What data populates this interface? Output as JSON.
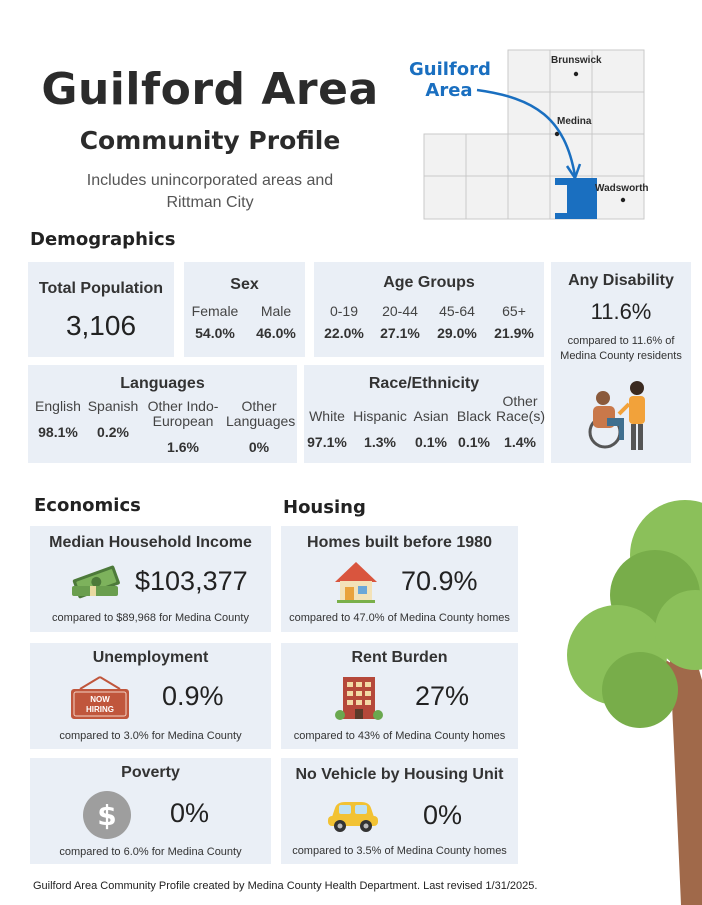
{
  "header": {
    "title": "Guilford Area",
    "subtitle": "Community Profile",
    "note_line1": "Includes unincorporated areas and",
    "note_line2": "Rittman City"
  },
  "map": {
    "callout_line1": "Guilford",
    "callout_line2": "Area",
    "labels": [
      "Brunswick",
      "Medina",
      "Wadsworth"
    ],
    "highlight_color": "#1a6fc0"
  },
  "sections": {
    "demographics": "Demographics",
    "economics": "Economics",
    "housing": "Housing"
  },
  "demographics": {
    "total_population": {
      "label": "Total Population",
      "value": "3,106"
    },
    "sex": {
      "label": "Sex",
      "items": [
        {
          "label": "Female",
          "value": "54.0%"
        },
        {
          "label": "Male",
          "value": "46.0%"
        }
      ]
    },
    "age_groups": {
      "label": "Age Groups",
      "items": [
        {
          "label": "0-19",
          "value": "22.0%"
        },
        {
          "label": "20-44",
          "value": "27.1%"
        },
        {
          "label": "45-64",
          "value": "29.0%"
        },
        {
          "label": "65+",
          "value": "21.9%"
        }
      ]
    },
    "disability": {
      "label": "Any Disability",
      "value": "11.6%",
      "compare_line1": "compared to 11.6% of",
      "compare_line2": "Medina County residents",
      "icon": "people-wheelchair-icon"
    },
    "languages": {
      "label": "Languages",
      "items": [
        {
          "label1": "English",
          "label2": "",
          "value": "98.1%"
        },
        {
          "label1": "Spanish",
          "label2": "",
          "value": "0.2%"
        },
        {
          "label1": "Other Indo-",
          "label2": "European",
          "value": "1.6%"
        },
        {
          "label1": "Other",
          "label2": "Languages",
          "value": "0%"
        }
      ]
    },
    "race": {
      "label": "Race/Ethnicity",
      "items": [
        {
          "label1": "",
          "label2": "White",
          "value": "97.1%"
        },
        {
          "label1": "",
          "label2": "Hispanic",
          "value": "1.3%"
        },
        {
          "label1": "",
          "label2": "Asian",
          "value": "0.1%"
        },
        {
          "label1": "",
          "label2": "Black",
          "value": "0.1%"
        },
        {
          "label1": "Other",
          "label2": "Race(s)",
          "value": "1.4%"
        }
      ]
    }
  },
  "economics": {
    "income": {
      "label": "Median Household Income",
      "value": "$103,377",
      "compare": "compared to $89,968 for Medina County",
      "icon": "money-stack-icon"
    },
    "unemployment": {
      "label": "Unemployment",
      "value": "0.9%",
      "compare": "compared to 3.0% for Medina County",
      "sign_line1": "NOW",
      "sign_line2": "HIRING",
      "icon": "now-hiring-sign-icon"
    },
    "poverty": {
      "label": "Poverty",
      "value": "0%",
      "compare": "compared to 6.0% for Medina County",
      "icon": "dollar-coin-icon"
    }
  },
  "housing": {
    "homes_before_1980": {
      "label": "Homes built before 1980",
      "value": "70.9%",
      "compare": "compared to 47.0% of Medina County homes",
      "icon": "house-icon"
    },
    "rent_burden": {
      "label": "Rent Burden",
      "value": "27%",
      "compare": "compared to 43% of Medina County homes",
      "icon": "apartment-building-icon"
    },
    "no_vehicle": {
      "label": "No Vehicle by Housing Unit",
      "value": "0%",
      "compare": "compared to 3.5% of Medina County homes",
      "icon": "car-icon"
    }
  },
  "footer": "Guilford Area Community Profile created by Medina County Health Department. Last revised 1/31/2025.",
  "colors": {
    "card_bg": "#eaeff6",
    "accent_blue": "#1a6fc0",
    "tree_green": "#8bc05a",
    "tree_trunk": "#a0694a"
  }
}
